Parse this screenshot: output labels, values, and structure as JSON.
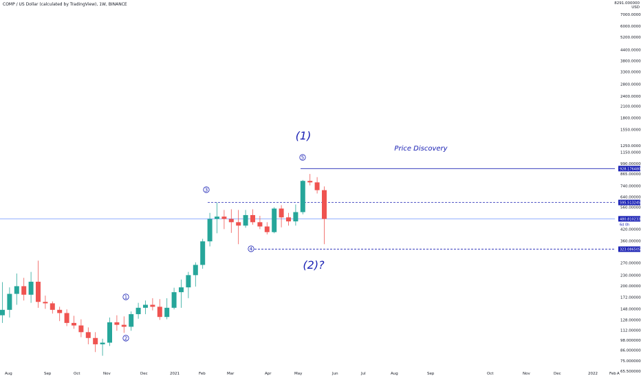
{
  "header": {
    "title": "COMP / US Dollar (calculated by TradingView), 1W, BINANCE"
  },
  "axis": {
    "top_label_1": "8291.000000",
    "top_label_2": "USD"
  },
  "colors": {
    "up": "#26a69a",
    "down": "#ef5350",
    "annotation": "#1a21b4",
    "current_line": "#2962ff"
  },
  "chart_data": {
    "type": "candlestick",
    "title": "COMP / US Dollar (calculated by TradingView), 1W, BINANCE",
    "y_scale": "log",
    "ylim": [
      62,
      8291
    ],
    "y_ticks": [
      "7000.000000",
      "6000.000000",
      "5200.000000",
      "4400.000000",
      "3800.000000",
      "3300.000000",
      "2800.000000",
      "2400.000000",
      "2100.000000",
      "1800.000000",
      "1550.000000",
      "1250.000000",
      "1150.000000",
      "990.000000",
      "865.000000",
      "740.000000",
      "640.000000",
      "560.000000",
      "420.000000",
      "360.000000",
      "270.000000",
      "230.000000",
      "200.000000",
      "172.000000",
      "148.000000",
      "128.000000",
      "112.000000",
      "98.000000",
      "86.000000",
      "75.000000",
      "65.500000"
    ],
    "x_ticks": [
      "Aug",
      "Sep",
      "Oct",
      "Nov",
      "Dec",
      "2021",
      "Feb",
      "Mar",
      "Apr",
      "May",
      "Jun",
      "Jul",
      "Aug",
      "Sep",
      "Oct",
      "Nov",
      "Dec",
      "2022",
      "Feb",
      "A"
    ],
    "candles": [
      {
        "o": 136,
        "h": 210,
        "l": 123,
        "c": 146
      },
      {
        "o": 146,
        "h": 196,
        "l": 132,
        "c": 180
      },
      {
        "o": 180,
        "h": 235,
        "l": 156,
        "c": 199
      },
      {
        "o": 199,
        "h": 222,
        "l": 165,
        "c": 178
      },
      {
        "o": 178,
        "h": 240,
        "l": 160,
        "c": 211
      },
      {
        "o": 211,
        "h": 278,
        "l": 150,
        "c": 162
      },
      {
        "o": 162,
        "h": 176,
        "l": 148,
        "c": 159
      },
      {
        "o": 159,
        "h": 163,
        "l": 139,
        "c": 146
      },
      {
        "o": 146,
        "h": 152,
        "l": 126,
        "c": 140
      },
      {
        "o": 140,
        "h": 147,
        "l": 118,
        "c": 123
      },
      {
        "o": 123,
        "h": 135,
        "l": 114,
        "c": 119
      },
      {
        "o": 119,
        "h": 129,
        "l": 102,
        "c": 109
      },
      {
        "o": 109,
        "h": 116,
        "l": 93,
        "c": 101
      },
      {
        "o": 101,
        "h": 109,
        "l": 84,
        "c": 93
      },
      {
        "o": 93,
        "h": 100,
        "l": 80,
        "c": 95
      },
      {
        "o": 95,
        "h": 132,
        "l": 91,
        "c": 124
      },
      {
        "o": 124,
        "h": 136,
        "l": 111,
        "c": 120
      },
      {
        "o": 120,
        "h": 134,
        "l": 108,
        "c": 117
      },
      {
        "o": 117,
        "h": 143,
        "l": 111,
        "c": 138
      },
      {
        "o": 138,
        "h": 160,
        "l": 130,
        "c": 150
      },
      {
        "o": 150,
        "h": 165,
        "l": 138,
        "c": 156
      },
      {
        "o": 156,
        "h": 170,
        "l": 145,
        "c": 152
      },
      {
        "o": 152,
        "h": 168,
        "l": 128,
        "c": 133
      },
      {
        "o": 133,
        "h": 170,
        "l": 129,
        "c": 150
      },
      {
        "o": 150,
        "h": 195,
        "l": 147,
        "c": 184
      },
      {
        "o": 184,
        "h": 217,
        "l": 150,
        "c": 196
      },
      {
        "o": 196,
        "h": 240,
        "l": 170,
        "c": 230
      },
      {
        "o": 230,
        "h": 272,
        "l": 198,
        "c": 263
      },
      {
        "o": 263,
        "h": 370,
        "l": 250,
        "c": 358
      },
      {
        "o": 358,
        "h": 520,
        "l": 335,
        "c": 480
      },
      {
        "o": 480,
        "h": 595,
        "l": 398,
        "c": 495
      },
      {
        "o": 495,
        "h": 540,
        "l": 420,
        "c": 480
      },
      {
        "o": 480,
        "h": 545,
        "l": 400,
        "c": 460
      },
      {
        "o": 460,
        "h": 540,
        "l": 345,
        "c": 440
      },
      {
        "o": 440,
        "h": 540,
        "l": 428,
        "c": 505
      },
      {
        "o": 505,
        "h": 545,
        "l": 445,
        "c": 460
      },
      {
        "o": 460,
        "h": 500,
        "l": 420,
        "c": 435
      },
      {
        "o": 435,
        "h": 460,
        "l": 392,
        "c": 404
      },
      {
        "o": 404,
        "h": 560,
        "l": 398,
        "c": 550
      },
      {
        "o": 550,
        "h": 575,
        "l": 430,
        "c": 490
      },
      {
        "o": 490,
        "h": 520,
        "l": 440,
        "c": 465
      },
      {
        "o": 465,
        "h": 580,
        "l": 440,
        "c": 525
      },
      {
        "o": 525,
        "h": 800,
        "l": 510,
        "c": 790
      },
      {
        "o": 790,
        "h": 865,
        "l": 745,
        "c": 775
      },
      {
        "o": 775,
        "h": 830,
        "l": 670,
        "c": 700
      },
      {
        "o": 700,
        "h": 735,
        "l": 345,
        "c": 480
      }
    ],
    "levels": [
      {
        "value": 928.17648,
        "label": "928.176480",
        "style": "solid"
      },
      {
        "value": 595.513245,
        "label": "595.513245",
        "style": "dashed"
      },
      {
        "value": 480.810233,
        "label": "480.810233",
        "sublabel": "6d 0h",
        "style": "current"
      },
      {
        "value": 323.086505,
        "label": "323.086505",
        "style": "dashed"
      }
    ],
    "annotations": {
      "wave1": "(1)",
      "wave2": "(2)?",
      "price_discovery": "Price Discovery",
      "sub_waves": [
        "1",
        "2",
        "3",
        "4",
        "5"
      ]
    }
  }
}
